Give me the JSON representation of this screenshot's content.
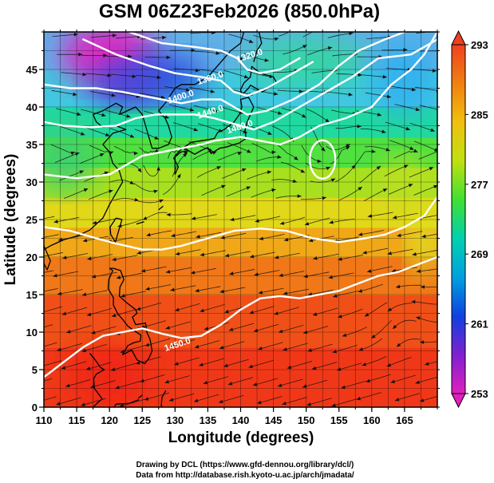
{
  "chart_data": {
    "type": "heatmap",
    "title": "GSM 06Z23Feb2026 (850.0hPa)",
    "xlabel": "Longitude (degrees)",
    "ylabel": "Latitude  (degrees)",
    "xlim": [
      110,
      170
    ],
    "ylim": [
      0,
      50
    ],
    "x_ticks": [
      110,
      115,
      120,
      125,
      130,
      135,
      140,
      145,
      150,
      155,
      160,
      165
    ],
    "y_ticks": [
      0,
      5,
      10,
      15,
      20,
      25,
      30,
      35,
      40,
      45
    ],
    "grid": true,
    "colorbar": {
      "min": 253,
      "max": 293,
      "ticks": [
        253,
        261,
        269,
        277,
        285,
        293
      ],
      "colors": [
        "#e020c0",
        "#8020d0",
        "#1040e0",
        "#00a0e0",
        "#00d0b0",
        "#40e030",
        "#c0e010",
        "#f0c010",
        "#f08010",
        "#f04020"
      ]
    },
    "contours": [
      {
        "label": "1320.0",
        "lon": 141.5,
        "lat": 46.5
      },
      {
        "label": "1360.0",
        "lon": 135.5,
        "lat": 43.5
      },
      {
        "label": "1400.0",
        "lon": 131.0,
        "lat": 41.0
      },
      {
        "label": "1440.0",
        "lon": 135.5,
        "lat": 39.0
      },
      {
        "label": "1480.0",
        "lon": 140.0,
        "lat": 37.0
      },
      {
        "label": "1450.0",
        "lon": 130.5,
        "lat": 8.0
      }
    ],
    "credits": [
      "Drawing by DCL (https://www.gfd-dennou.org/library/dcl/)",
      "Data from http://database.rish.kyoto-u.ac.jp/arch/jmadata/"
    ]
  }
}
